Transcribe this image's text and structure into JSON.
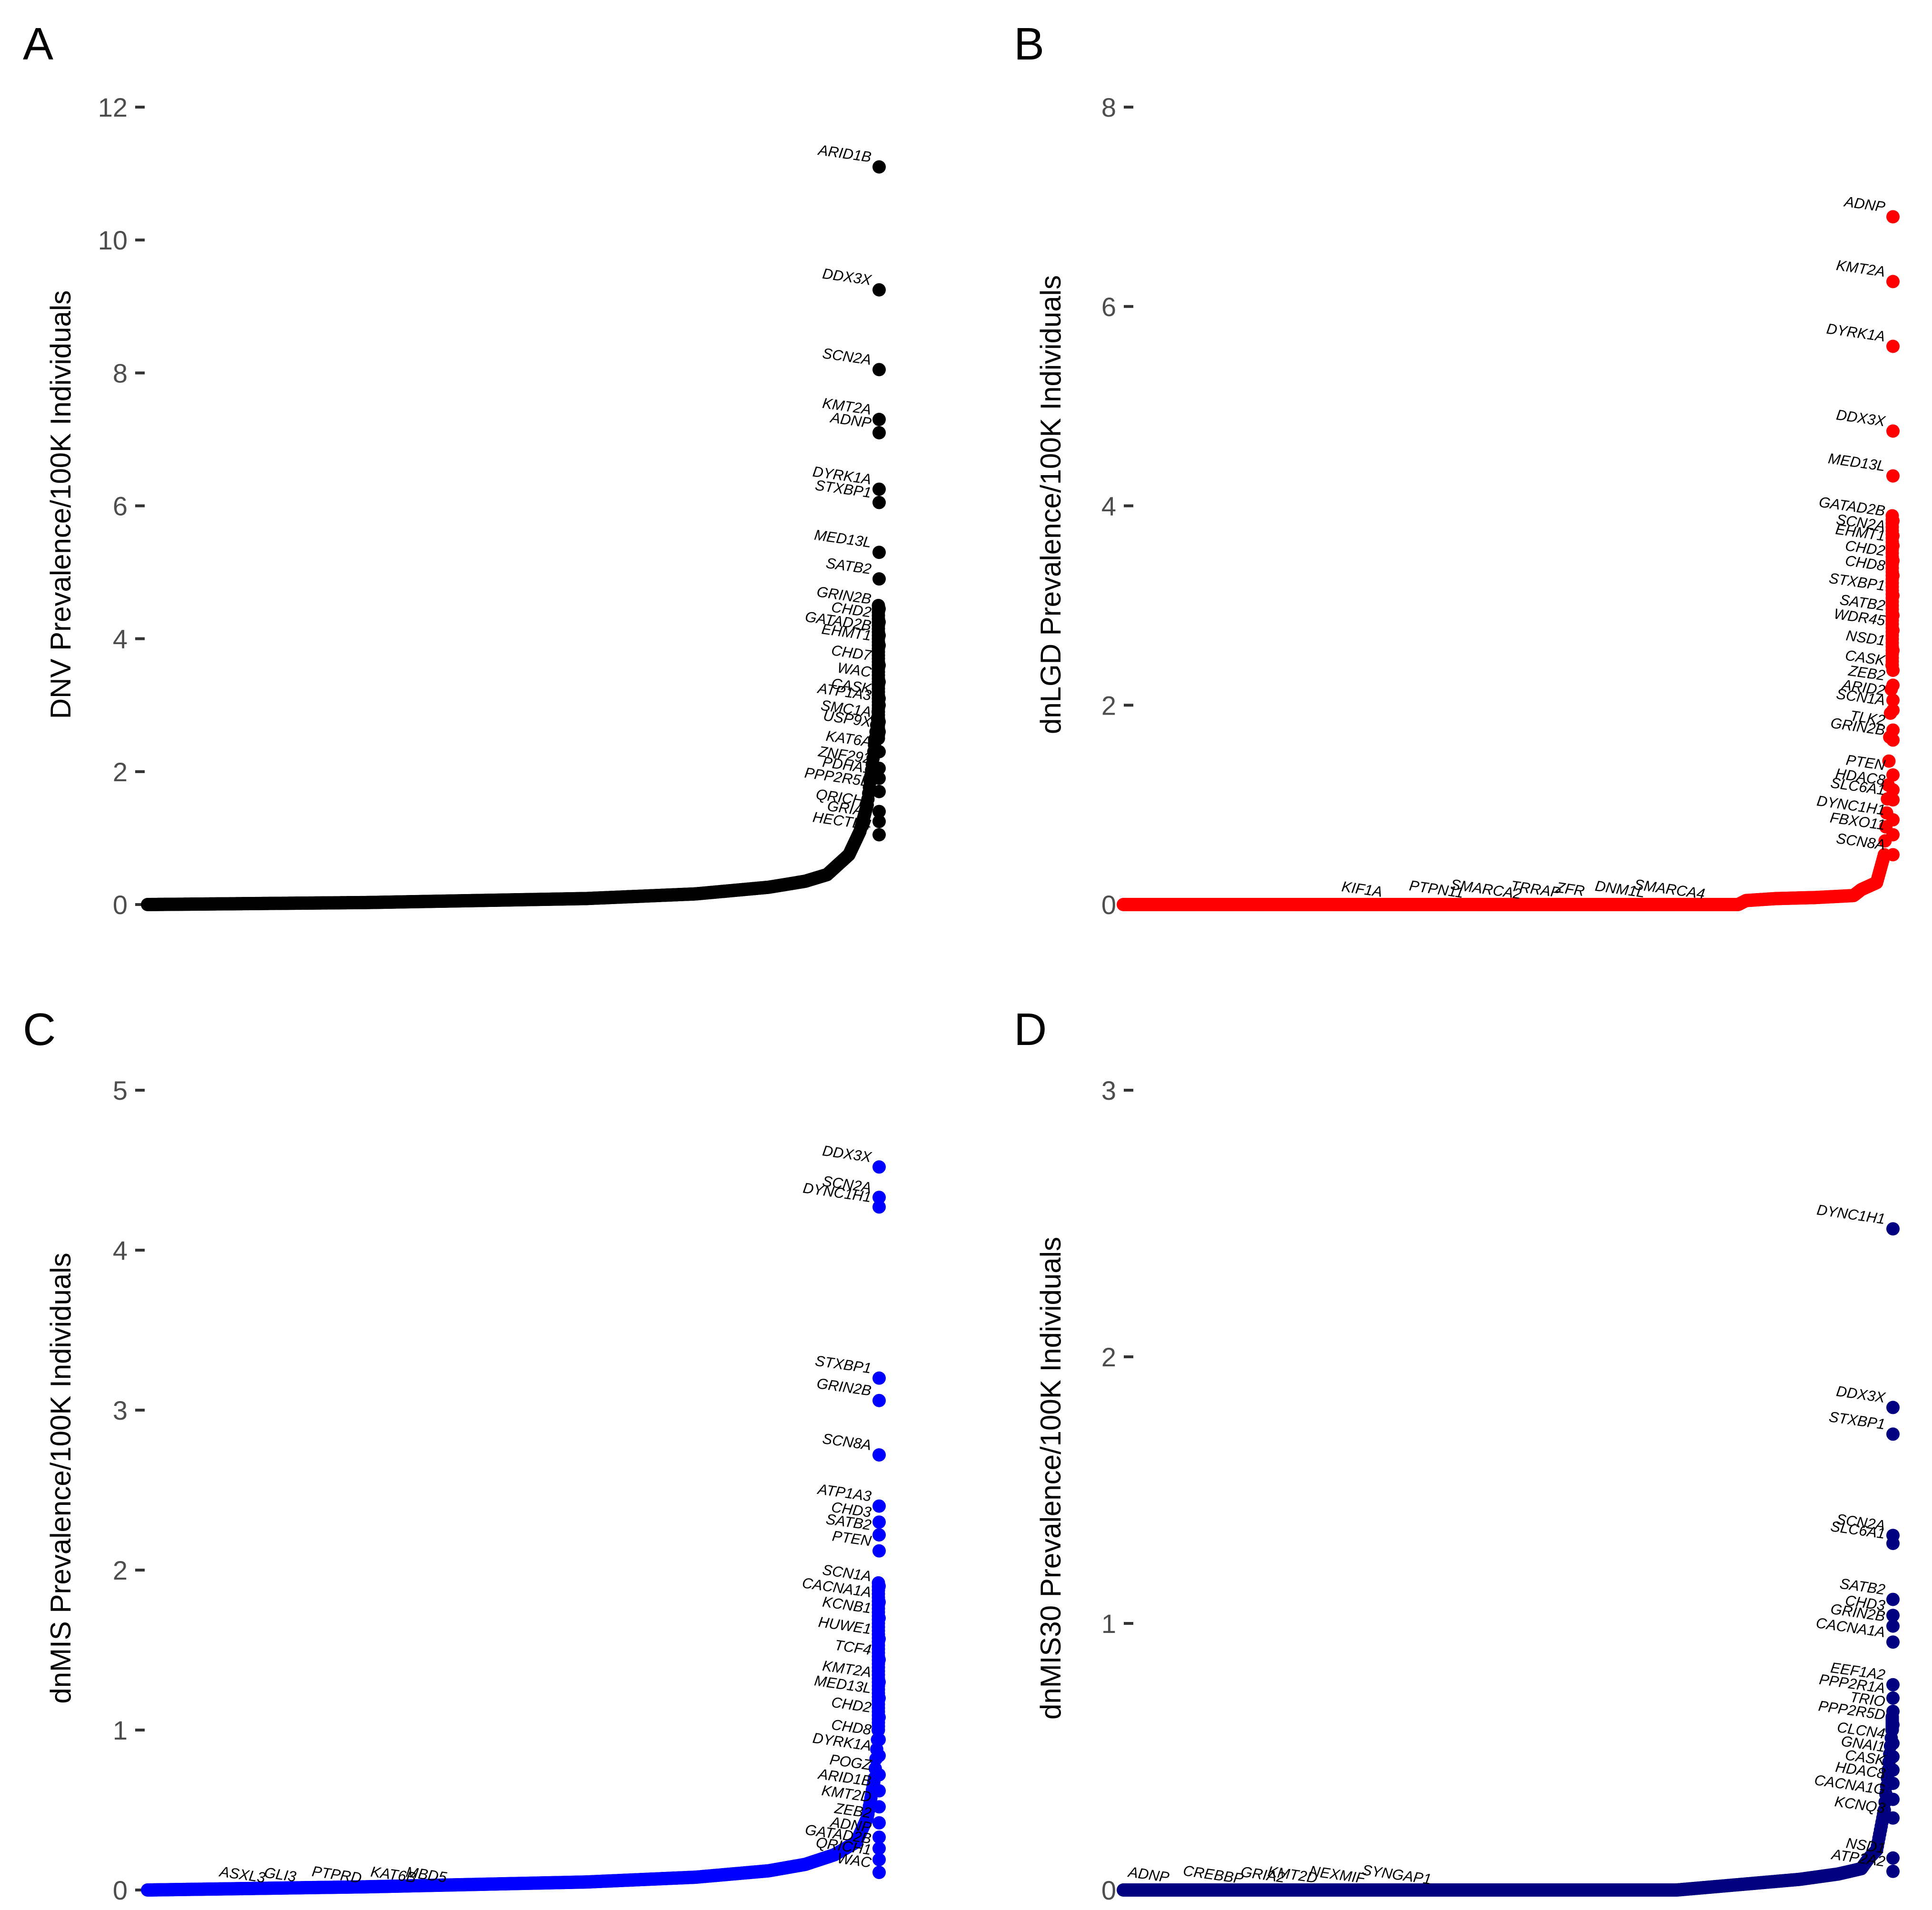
{
  "panels": [
    {
      "letter": "A",
      "ylabel": "DNV Prevalence/100K Individuals",
      "color": "#000000",
      "yticks": [
        "0",
        "2",
        "4",
        "6",
        "8",
        "10",
        "12"
      ],
      "chart_data": {
        "type": "scatter",
        "xlabel": "",
        "ylabel": "DNV Prevalence/100K Individuals",
        "ylim": [
          0,
          12
        ],
        "n_genes": 1000,
        "curve_shape": [
          [
            0.0,
            0.0
          ],
          [
            0.3,
            0.03
          ],
          [
            0.6,
            0.09
          ],
          [
            0.75,
            0.16
          ],
          [
            0.85,
            0.26
          ],
          [
            0.9,
            0.35
          ],
          [
            0.93,
            0.45
          ],
          [
            0.96,
            0.75
          ],
          [
            0.975,
            1.1
          ],
          [
            0.985,
            1.5
          ],
          [
            0.993,
            2.2
          ],
          [
            1.0,
            2.9
          ]
        ],
        "cluster": [
          4.5,
          2.5
        ],
        "points": [
          {
            "gene": "ARID1B",
            "y": 11.1
          },
          {
            "gene": "DDX3X",
            "y": 9.25
          },
          {
            "gene": "SCN2A",
            "y": 8.05
          },
          {
            "gene": "KMT2A",
            "y": 7.3
          },
          {
            "gene": "ADNP",
            "y": 7.1
          },
          {
            "gene": "DYRK1A",
            "y": 6.25
          },
          {
            "gene": "STXBP1",
            "y": 6.05
          },
          {
            "gene": "MED13L",
            "y": 5.3
          },
          {
            "gene": "SATB2",
            "y": 4.9
          },
          {
            "gene": "GRIN2B",
            "y": 4.45
          },
          {
            "gene": "CHD2",
            "y": 4.25
          },
          {
            "gene": "GATAD2B",
            "y": 4.05
          },
          {
            "gene": "EHMT1",
            "y": 3.9
          },
          {
            "gene": "CHD7",
            "y": 3.6
          },
          {
            "gene": "WAC",
            "y": 3.35
          },
          {
            "gene": "CASK",
            "y": 3.1
          },
          {
            "gene": "ATP1A3",
            "y": 3.0
          },
          {
            "gene": "SMC1A",
            "y": 2.75
          },
          {
            "gene": "USP9X",
            "y": 2.6
          },
          {
            "gene": "KAT6A",
            "y": 2.3
          },
          {
            "gene": "ZNF292",
            "y": 2.05
          },
          {
            "gene": "PDHA1",
            "y": 1.9
          },
          {
            "gene": "PPP2R5D",
            "y": 1.7
          },
          {
            "gene": "QRICH1",
            "y": 1.4
          },
          {
            "gene": "GRIA2",
            "y": 1.25
          },
          {
            "gene": "HECTD4",
            "y": 1.05
          }
        ],
        "low_labels": []
      }
    },
    {
      "letter": "B",
      "ylabel": "dnLGD Prevalence/100K Individuals",
      "color": "#ff0000",
      "yticks": [
        "0",
        "2",
        "4",
        "6",
        "8"
      ],
      "chart_data": {
        "type": "scatter",
        "xlabel": "",
        "ylabel": "dnLGD Prevalence/100K Individuals",
        "ylim": [
          0,
          8
        ],
        "n_genes": 1000,
        "curve_shape": [
          [
            0.0,
            0.0
          ],
          [
            0.8,
            0.0
          ],
          [
            0.81,
            0.04
          ],
          [
            0.85,
            0.06
          ],
          [
            0.9,
            0.07
          ],
          [
            0.95,
            0.09
          ],
          [
            0.96,
            0.15
          ],
          [
            0.98,
            0.22
          ],
          [
            0.99,
            0.5
          ],
          [
            0.995,
            1.2
          ],
          [
            1.0,
            2.4
          ]
        ],
        "cluster": [
          3.9,
          2.4
        ],
        "points": [
          {
            "gene": "ADNP",
            "y": 6.9
          },
          {
            "gene": "KMT2A",
            "y": 6.25
          },
          {
            "gene": "DYRK1A",
            "y": 5.6
          },
          {
            "gene": "DDX3X",
            "y": 4.75
          },
          {
            "gene": "MED13L",
            "y": 4.3
          },
          {
            "gene": "GATAD2B",
            "y": 3.85
          },
          {
            "gene": "SCN2A",
            "y": 3.7
          },
          {
            "gene": "EHMT1",
            "y": 3.6
          },
          {
            "gene": "CHD2",
            "y": 3.45
          },
          {
            "gene": "CHD8",
            "y": 3.3
          },
          {
            "gene": "STXBP1",
            "y": 3.1
          },
          {
            "gene": "SATB2",
            "y": 2.9
          },
          {
            "gene": "WDR45",
            "y": 2.75
          },
          {
            "gene": "NSD1",
            "y": 2.55
          },
          {
            "gene": "CASK",
            "y": 2.35
          },
          {
            "gene": "ZEB2",
            "y": 2.2
          },
          {
            "gene": "ARID2",
            "y": 2.05
          },
          {
            "gene": "SCN1A",
            "y": 1.95
          },
          {
            "gene": "TLK2",
            "y": 1.75
          },
          {
            "gene": "GRIN2B",
            "y": 1.65
          },
          {
            "gene": "PTEN",
            "y": 1.3
          },
          {
            "gene": "HDAC8",
            "y": 1.15
          },
          {
            "gene": "SLC6A1",
            "y": 1.05
          },
          {
            "gene": "DYNC1H1",
            "y": 0.85
          },
          {
            "gene": "FBXO11",
            "y": 0.7
          },
          {
            "gene": "SCN8A",
            "y": 0.5
          }
        ],
        "low_labels": [
          {
            "gene": "KIF1A",
            "x": 0.48
          },
          {
            "gene": "PTPN11",
            "x": 0.63
          },
          {
            "gene": "SMARCA2",
            "x": 0.73
          },
          {
            "gene": "TRRAP",
            "x": 0.83
          },
          {
            "gene": "ZFR",
            "x": 0.9
          },
          {
            "gene": "DNM1L",
            "x": 1.0
          },
          {
            "gene": "SMARCA4",
            "x": 1.1
          }
        ]
      }
    },
    {
      "letter": "C",
      "ylabel": "dnMIS Prevalence/100K Individuals",
      "color": "#0000ff",
      "yticks": [
        "0",
        "1",
        "2",
        "3",
        "4",
        "5"
      ],
      "chart_data": {
        "type": "scatter",
        "xlabel": "",
        "ylabel": "dnMIS Prevalence/100K Individuals",
        "ylim": [
          0,
          5
        ],
        "n_genes": 1000,
        "curve_shape": [
          [
            0.0,
            0.0
          ],
          [
            0.3,
            0.02
          ],
          [
            0.6,
            0.05
          ],
          [
            0.75,
            0.08
          ],
          [
            0.85,
            0.12
          ],
          [
            0.9,
            0.16
          ],
          [
            0.94,
            0.22
          ],
          [
            0.97,
            0.3
          ],
          [
            0.985,
            0.45
          ],
          [
            0.995,
            0.7
          ],
          [
            1.0,
            1.0
          ]
        ],
        "cluster": [
          1.92,
          1.0
        ],
        "points": [
          {
            "gene": "DDX3X",
            "y": 4.52
          },
          {
            "gene": "SCN2A",
            "y": 4.33
          },
          {
            "gene": "DYNC1H1",
            "y": 4.27
          },
          {
            "gene": "STXBP1",
            "y": 3.2
          },
          {
            "gene": "GRIN2B",
            "y": 3.06
          },
          {
            "gene": "SCN8A",
            "y": 2.72
          },
          {
            "gene": "ATP1A3",
            "y": 2.4
          },
          {
            "gene": "CHD3",
            "y": 2.3
          },
          {
            "gene": "SATB2",
            "y": 2.22
          },
          {
            "gene": "PTEN",
            "y": 2.12
          },
          {
            "gene": "SCN1A",
            "y": 1.9
          },
          {
            "gene": "CACNA1A",
            "y": 1.8
          },
          {
            "gene": "KCNB1",
            "y": 1.7
          },
          {
            "gene": "HUWE1",
            "y": 1.57
          },
          {
            "gene": "TCF4",
            "y": 1.44
          },
          {
            "gene": "KMT2A",
            "y": 1.3
          },
          {
            "gene": "MED13L",
            "y": 1.2
          },
          {
            "gene": "CHD2",
            "y": 1.08
          },
          {
            "gene": "CHD8",
            "y": 0.94
          },
          {
            "gene": "DYRK1A",
            "y": 0.84
          },
          {
            "gene": "POGZ",
            "y": 0.72
          },
          {
            "gene": "ARID1B",
            "y": 0.62
          },
          {
            "gene": "KMT2D",
            "y": 0.52
          },
          {
            "gene": "ZEB2",
            "y": 0.42
          },
          {
            "gene": "ADNP",
            "y": 0.33
          },
          {
            "gene": "GATAD2B",
            "y": 0.26
          },
          {
            "gene": "QRICH1",
            "y": 0.19
          },
          {
            "gene": "WAC",
            "y": 0.11
          }
        ],
        "low_labels": [
          {
            "gene": "ASXL3",
            "x": 0.2
          },
          {
            "gene": "GLI3",
            "x": 0.28
          },
          {
            "gene": "PTPRD",
            "x": 0.4
          },
          {
            "gene": "KAT6B",
            "x": 0.52
          },
          {
            "gene": "MBD5",
            "x": 0.59
          }
        ]
      }
    },
    {
      "letter": "D",
      "ylabel": "dnMIS30 Prevalence/100K Individuals",
      "color": "#000080",
      "yticks": [
        "0",
        "1",
        "2",
        "3"
      ],
      "chart_data": {
        "type": "scatter",
        "xlabel": "",
        "ylabel": "dnMIS30 Prevalence/100K Individuals",
        "ylim": [
          0,
          3
        ],
        "n_genes": 1000,
        "curve_shape": [
          [
            0.0,
            0.0
          ],
          [
            0.72,
            0.0
          ],
          [
            0.8,
            0.02
          ],
          [
            0.88,
            0.04
          ],
          [
            0.93,
            0.06
          ],
          [
            0.96,
            0.08
          ],
          [
            0.97,
            0.12
          ],
          [
            0.98,
            0.15
          ],
          [
            0.99,
            0.3
          ],
          [
            0.995,
            0.45
          ],
          [
            1.0,
            0.6
          ]
        ],
        "cluster": [
          0.65,
          0.6
        ],
        "points": [
          {
            "gene": "DYNC1H1",
            "y": 2.48
          },
          {
            "gene": "DDX3X",
            "y": 1.81
          },
          {
            "gene": "STXBP1",
            "y": 1.71
          },
          {
            "gene": "SCN2A",
            "y": 1.33
          },
          {
            "gene": "SLC6A1",
            "y": 1.3
          },
          {
            "gene": "SATB2",
            "y": 1.09
          },
          {
            "gene": "CHD3",
            "y": 1.03
          },
          {
            "gene": "GRIN2B",
            "y": 0.99
          },
          {
            "gene": "CACNA1A",
            "y": 0.93
          },
          {
            "gene": "EEF1A2",
            "y": 0.77
          },
          {
            "gene": "PPP2R1A",
            "y": 0.72
          },
          {
            "gene": "TRIO",
            "y": 0.67
          },
          {
            "gene": "PPP2R5D",
            "y": 0.62
          },
          {
            "gene": "CLCN4",
            "y": 0.55
          },
          {
            "gene": "GNAI1",
            "y": 0.5
          },
          {
            "gene": "CASK",
            "y": 0.45
          },
          {
            "gene": "HDAC8",
            "y": 0.4
          },
          {
            "gene": "CACNA1G",
            "y": 0.34
          },
          {
            "gene": "KCNQ3",
            "y": 0.27
          },
          {
            "gene": "NSD1",
            "y": 0.12
          },
          {
            "gene": "ATP2A2",
            "y": 0.07
          }
        ],
        "low_labels": [
          {
            "gene": "ADNP",
            "x": 0.05
          },
          {
            "gene": "CREBBP",
            "x": 0.18
          },
          {
            "gene": "GRIA2",
            "x": 0.28
          },
          {
            "gene": "KMT2D",
            "x": 0.34
          },
          {
            "gene": "NEXMIF",
            "x": 0.43
          },
          {
            "gene": "SYNGAP1",
            "x": 0.55
          }
        ]
      }
    }
  ]
}
